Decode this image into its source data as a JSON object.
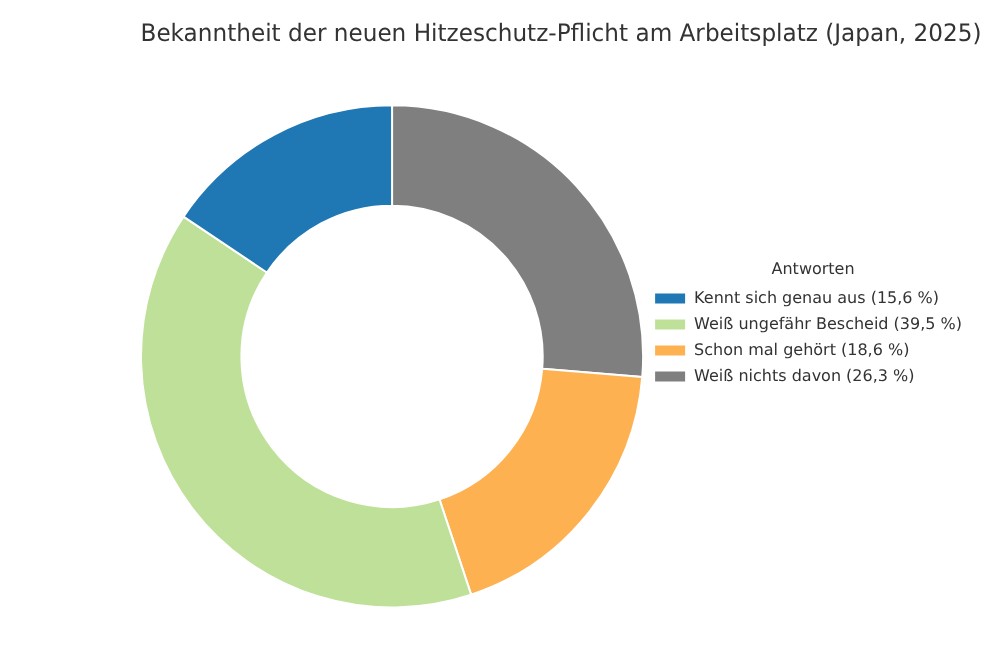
{
  "chart_data": {
    "type": "donut",
    "title": "Bekanntheit der neuen Hitzeschutz-Pflicht am Arbeitsplatz (Japan, 2025)",
    "legend_title": "Antworten",
    "legend": "right",
    "categories": [
      "Kennt sich genau aus (15,6 %)",
      "Weiß ungefähr Bescheid (39,5 %)",
      "Schon mal gehört (18,6 %)",
      "Weiß nichts davon (26,3 %)"
    ],
    "values": [
      15.6,
      39.5,
      18.6,
      26.3
    ],
    "colors": [
      "#1f77b4",
      "#bfe099",
      "#fdb151",
      "#7f7f7f"
    ]
  }
}
